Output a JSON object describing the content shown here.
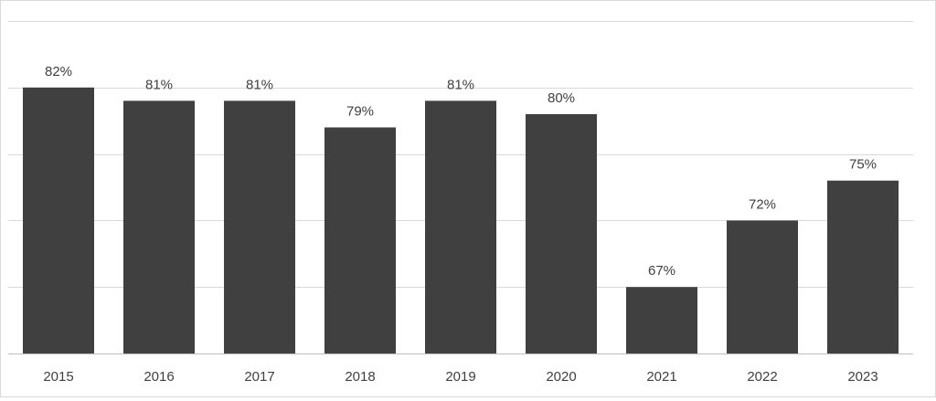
{
  "chart_data": {
    "type": "bar",
    "title": "",
    "xlabel": "",
    "ylabel": "",
    "categories": [
      "2015",
      "2016",
      "2017",
      "2018",
      "2019",
      "2020",
      "2021",
      "2022",
      "2023"
    ],
    "values": [
      82,
      81,
      81,
      79,
      81,
      80,
      67,
      72,
      75
    ],
    "value_labels": [
      "82%",
      "81%",
      "81%",
      "79%",
      "81%",
      "80%",
      "67%",
      "72%",
      "75%"
    ],
    "ylim": [
      62,
      87
    ],
    "gridline_values": [
      62,
      67,
      72,
      77,
      82,
      87
    ],
    "grid": true,
    "legend": "none",
    "colors": {
      "bar": "#404040",
      "grid": "#d9d9d9",
      "axis": "#bfbfbf",
      "text": "#404040"
    }
  }
}
